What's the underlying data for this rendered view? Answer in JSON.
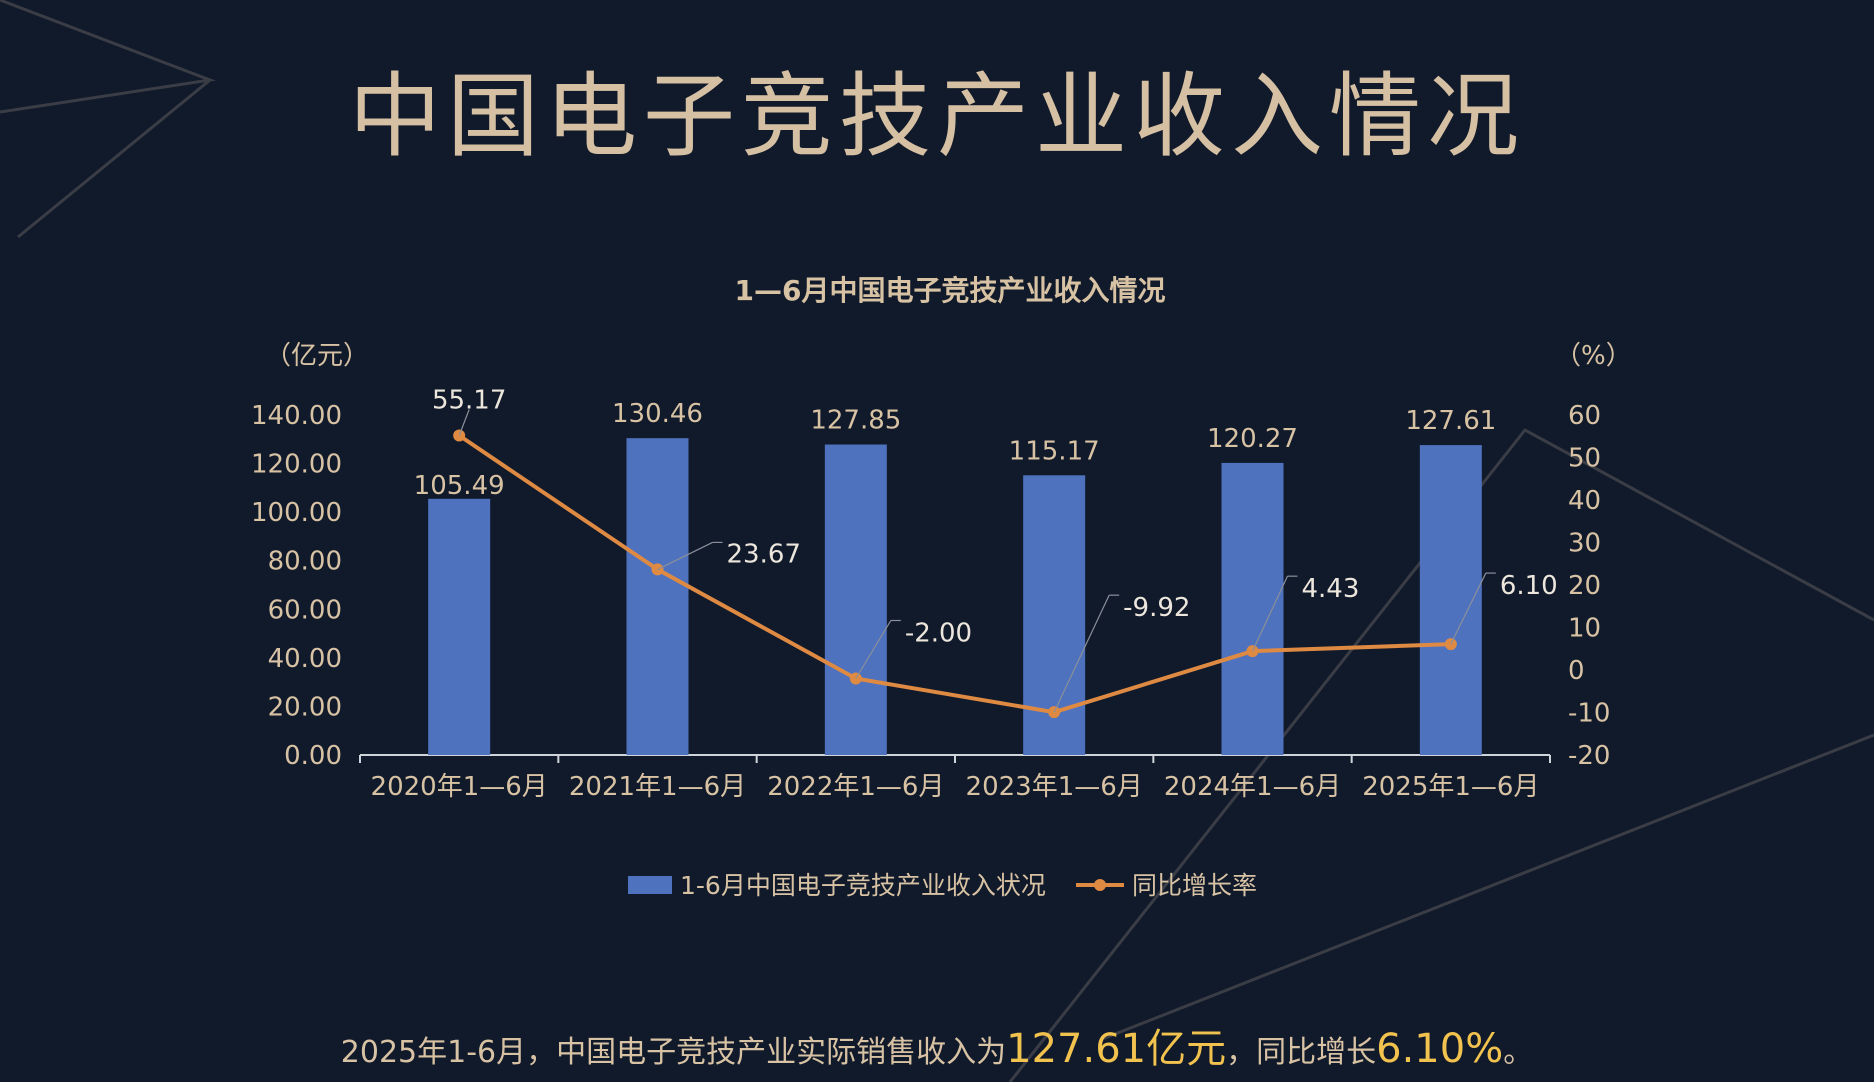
{
  "page": {
    "title": "中国电子竞技产业收入情况"
  },
  "summary": {
    "prefix": "2025年1-6月，中国电子竞技产业实际销售收入为",
    "value": "127.61亿元",
    "middle": "，同比增长",
    "rate": "6.10%",
    "suffix": "。"
  },
  "colors": {
    "background": "#111a2b",
    "bar": "#4e72be",
    "line": "#df8a43",
    "text": "#d8c2a4",
    "highlight": "#f2c24e"
  },
  "chart_data": {
    "type": "bar",
    "title": "1—6月中国电子竞技产业收入情况",
    "left_unit": "（亿元）",
    "right_unit": "（%）",
    "categories": [
      "2020年1—6月",
      "2021年1—6月",
      "2022年1—6月",
      "2023年1—6月",
      "2024年1—6月",
      "2025年1—6月"
    ],
    "series": [
      {
        "name": "1-6月中国电子竞技产业收入状况",
        "type": "bar",
        "axis": "left",
        "values": [
          105.49,
          130.46,
          127.85,
          115.17,
          120.27,
          127.61
        ],
        "labels": [
          "105.49",
          "130.46",
          "127.85",
          "115.17",
          "120.27",
          "127.61"
        ]
      },
      {
        "name": "同比增长率",
        "type": "line",
        "axis": "right",
        "values": [
          55.17,
          23.67,
          -2.0,
          -9.92,
          4.43,
          6.1
        ],
        "labels": [
          "55.17",
          "23.67",
          "-2.00",
          "-9.92",
          "4.43",
          "6.10"
        ]
      }
    ],
    "y_left": {
      "min": 0,
      "max": 140,
      "ticks": [
        "0.00",
        "20.00",
        "40.00",
        "60.00",
        "80.00",
        "100.00",
        "120.00",
        "140.00"
      ]
    },
    "y_right": {
      "min": -20,
      "max": 60,
      "ticks": [
        "-20",
        "-10",
        "0",
        "10",
        "20",
        "30",
        "40",
        "50",
        "60"
      ]
    },
    "grid": false,
    "legend": "bottom-center"
  }
}
